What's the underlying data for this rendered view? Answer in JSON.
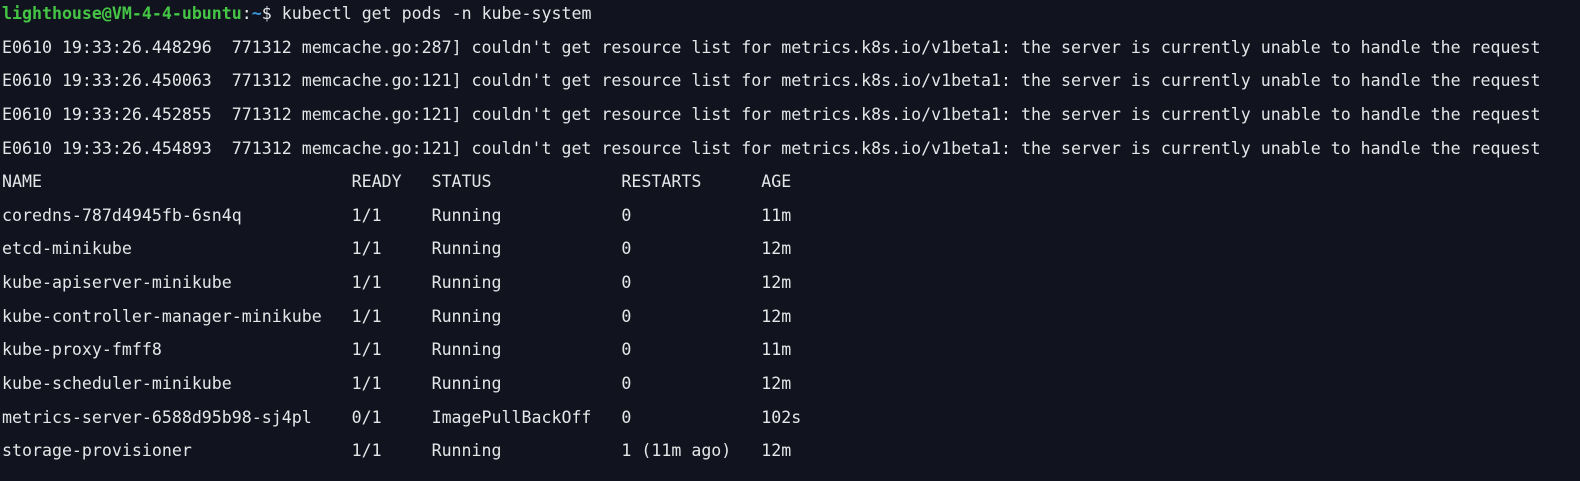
{
  "terminal": {
    "colors": {
      "background": "#11131e",
      "text": "#e4e6e8",
      "prompt_green": "#45c545",
      "path_blue": "#3a96dd"
    },
    "prompt": {
      "user_host": "lighthouse@VM-4-4-ubuntu",
      "separator": ":",
      "path": "~",
      "dollar": "$ ",
      "command": "kubectl get pods -n kube-system"
    },
    "errors": [
      "E0610 19:33:26.448296  771312 memcache.go:287] couldn't get resource list for metrics.k8s.io/v1beta1: the server is currently unable to handle the request",
      "E0610 19:33:26.450063  771312 memcache.go:121] couldn't get resource list for metrics.k8s.io/v1beta1: the server is currently unable to handle the request",
      "E0610 19:33:26.452855  771312 memcache.go:121] couldn't get resource list for metrics.k8s.io/v1beta1: the server is currently unable to handle the request",
      "E0610 19:33:26.454893  771312 memcache.go:121] couldn't get resource list for metrics.k8s.io/v1beta1: the server is currently unable to handle the request"
    ],
    "table": {
      "headers": {
        "name": "NAME",
        "ready": "READY",
        "status": "STATUS",
        "restarts": "RESTARTS",
        "age": "AGE"
      },
      "rows": [
        {
          "name": "coredns-787d4945fb-6sn4q",
          "ready": "1/1",
          "status": "Running",
          "restarts": "0",
          "age": "11m"
        },
        {
          "name": "etcd-minikube",
          "ready": "1/1",
          "status": "Running",
          "restarts": "0",
          "age": "12m"
        },
        {
          "name": "kube-apiserver-minikube",
          "ready": "1/1",
          "status": "Running",
          "restarts": "0",
          "age": "12m"
        },
        {
          "name": "kube-controller-manager-minikube",
          "ready": "1/1",
          "status": "Running",
          "restarts": "0",
          "age": "12m"
        },
        {
          "name": "kube-proxy-fmff8",
          "ready": "1/1",
          "status": "Running",
          "restarts": "0",
          "age": "11m"
        },
        {
          "name": "kube-scheduler-minikube",
          "ready": "1/1",
          "status": "Running",
          "restarts": "0",
          "age": "12m"
        },
        {
          "name": "metrics-server-6588d95b98-sj4pl",
          "ready": "0/1",
          "status": "ImagePullBackOff",
          "restarts": "0",
          "age": "102s"
        },
        {
          "name": "storage-provisioner",
          "ready": "1/1",
          "status": "Running",
          "restarts": "1 (11m ago)",
          "age": "12m"
        }
      ]
    }
  }
}
